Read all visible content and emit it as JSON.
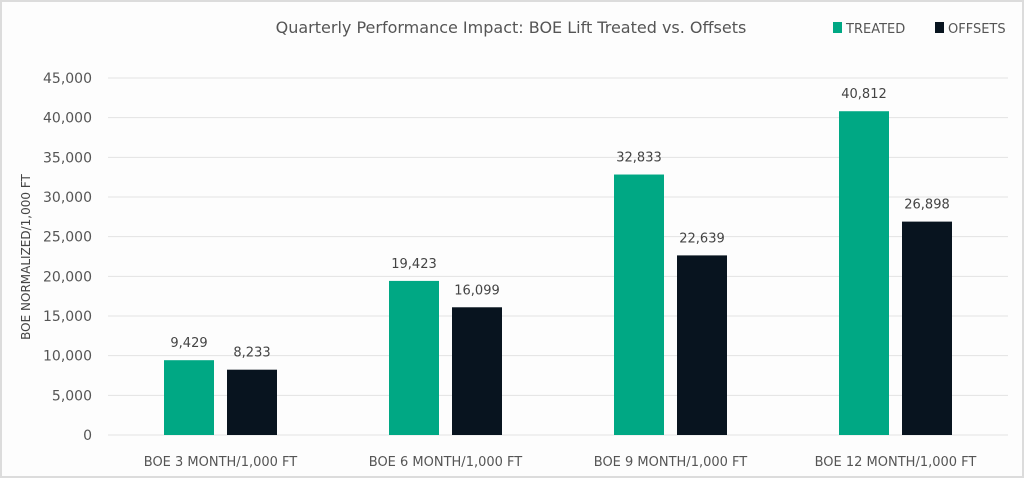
{
  "chart_data": {
    "type": "bar",
    "title": "Quarterly Performance Impact: BOE Lift Treated vs. Offsets",
    "xlabel": "",
    "ylabel": "BOE NORMALIZED/1,000 FT",
    "ylim": [
      0,
      45000
    ],
    "yticks": [
      0,
      5000,
      10000,
      15000,
      20000,
      25000,
      30000,
      35000,
      40000,
      45000
    ],
    "ytick_labels": [
      "0",
      "5,000",
      "10,000",
      "15,000",
      "20,000",
      "25,000",
      "30,000",
      "35,000",
      "40,000",
      "45,000"
    ],
    "grid": true,
    "legend_position": "top-right",
    "categories": [
      "BOE 3 MONTH/1,000 FT",
      "BOE 6 MONTH/1,000 FT",
      "BOE 9 MONTH/1,000 FT",
      "BOE 12 MONTH/1,000 FT"
    ],
    "series": [
      {
        "name": "TREATED",
        "color": "#00A884",
        "values": [
          9429,
          19423,
          32833,
          40812
        ],
        "labels": [
          "9,429",
          "19,423",
          "32,833",
          "40,812"
        ]
      },
      {
        "name": "OFFSETS",
        "color": "#08141F",
        "values": [
          8233,
          16099,
          22639,
          26898
        ],
        "labels": [
          "8,233",
          "16,099",
          "22,639",
          "26,898"
        ]
      }
    ]
  }
}
